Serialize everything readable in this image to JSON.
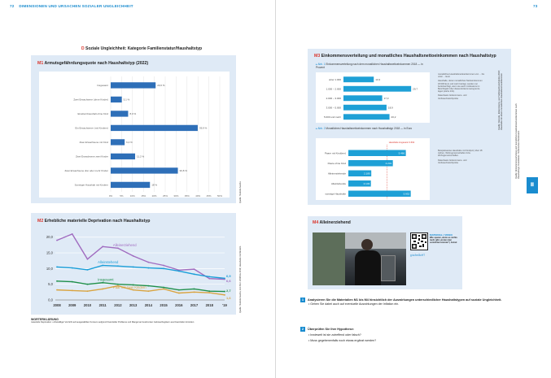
{
  "header": {
    "left_page_number": "72",
    "left_title": "DIMENSIONEN UND URSACHEN SOZIALER UNGLEICHHEIT",
    "right_page_number": "73"
  },
  "section_title": {
    "letter": "D",
    "text": "Soziale Ungleichheit: Kategorie Familienstatur/Haushaltstyp"
  },
  "m1": {
    "marker": "M1",
    "title": "Armutsgefährdungsquote nach Haushaltstyp (2022)",
    "source_vertical": "Quelle: Statistik Austria",
    "xaxis_label": "Armutsgefährdungsquote",
    "chart_data": {
      "type": "bar",
      "orientation": "horizontal",
      "title": "Armutsgefährdungsquote nach Haushaltstyp (2022)",
      "categories": [
        "Insgesamt",
        "Zwei Erwachsene (ohne Kinder)",
        "Einelternhaushalt ohne Kind",
        "Ein Erwachsener (mit Kindern)",
        "Zwei Erwachsene mit Kind",
        "Zwei Erwachsene zwei Kinder",
        "Zwei Erwachsene drei oder mehr Kinder",
        "Sonstiger Haushalt mit Kindern"
      ],
      "values": [
        20.6,
        5.1,
        8.0,
        39.9,
        6.4,
        11.2,
        30.8,
        18.0
      ],
      "value_labels": [
        "20,6 %",
        "5,1 %",
        "8,0 %",
        "39,9 %",
        "6,4 %",
        "11,2 %",
        "30,8 %",
        "18 %"
      ],
      "xticks": [
        "0%",
        "5%",
        "10%",
        "15%",
        "20%",
        "25%",
        "30%",
        "35%",
        "40%",
        "45%",
        "50%"
      ],
      "xlim": [
        0,
        50
      ]
    }
  },
  "m2": {
    "marker": "M2",
    "title": "Erhebliche materielle Deprivation nach Haushaltstyp",
    "source_vertical": "Quelle: Statistik Austria, EU-SILC 2008 bis 2019; Haushalte mit Kindern",
    "glossary_title": "WORTERKLÄRUNG",
    "glossary_text": "materielle Deprivation: unfreiwilliger Verzicht auf ausgewählten Konsum aufgrund finanzieller Probleme und Mangel an bestimmten Gebrauchsgütern aus finanziellen Gründen",
    "chart_data": {
      "type": "line",
      "title": "Erhebliche materielle Deprivation nach Haushaltstyp",
      "x": [
        "2008",
        "2009",
        "2010",
        "2011",
        "2012",
        "2013",
        "2014",
        "2015",
        "2016",
        "2017",
        "2018",
        "'19"
      ],
      "ylim": [
        0,
        22
      ],
      "yticks": [
        "0,0",
        "5,0",
        "10,0",
        "15,0",
        "20,0"
      ],
      "series": [
        {
          "name": "Alleinerziehend",
          "color": "#a06cc0",
          "values": [
            19.0,
            21.0,
            13.0,
            17.0,
            16.5,
            14.0,
            12.0,
            11.0,
            9.5,
            9.8,
            6.8,
            6.6
          ]
        },
        {
          "name": "Alleinstehend",
          "color": "#1a9ed8",
          "values": [
            10.5,
            10.2,
            9.6,
            11.0,
            10.8,
            10.5,
            10.2,
            10.0,
            9.2,
            8.2,
            7.4,
            6.9
          ]
        },
        {
          "name": "Insgesamt",
          "color": "#1f8f4a",
          "values": [
            6.0,
            5.8,
            5.0,
            5.5,
            5.0,
            4.8,
            4.5,
            4.0,
            3.2,
            3.5,
            2.8,
            2.7
          ]
        },
        {
          "name": "Paar mit zwei Kindern",
          "color": "#d9a441",
          "values": [
            3.2,
            3.0,
            2.8,
            3.5,
            4.5,
            3.2,
            2.8,
            3.5,
            2.2,
            2.5,
            2.3,
            1.6
          ]
        }
      ],
      "end_labels": [
        "6,6",
        "6,9",
        "2,7",
        "1,6"
      ]
    }
  },
  "m3": {
    "marker": "M3",
    "title": "Einkommensverteilung und monatliches Haushaltsnettoeinkommen nach Haushaltstyp",
    "sub1_label": "Abb. 1",
    "sub1_title": "Einkommensverteilung nach dem monatlichen Haushaltsnettoeinkommen 2018 — in Prozent",
    "chart1": {
      "type": "bar",
      "orientation": "horizontal",
      "categories": [
        "unter 1.000",
        "1.000 – 2.000",
        "2.000 – 3.000",
        "3.000 – 5.000",
        "5.000 und mehr"
      ],
      "values": [
        13.3,
        29.7,
        17.0,
        18.9,
        20.2
      ],
      "value_labels": [
        "13,3",
        "29,7",
        "17,0",
        "18,9",
        "20,2"
      ],
      "xlim": [
        0,
        35
      ]
    },
    "sub2_label": "Abb. 2",
    "sub2_title": "Monatliches Haushaltsnettoeinkommen nach Haushaltstyp 2018 — in Euro",
    "chart2_note": "Haushalte insgesamt 3.692",
    "chart2": {
      "type": "bar",
      "orientation": "horizontal",
      "categories": [
        "Paare mit Kind(ern)",
        "Paare ohne Kind",
        "Alleinerziehende",
        "Alleinlebende",
        "sonstige Haushalte"
      ],
      "values": [
        5466,
        4231,
        2180,
        2143,
        5932
      ],
      "value_labels": [
        "5.466",
        "4.231",
        "2.180",
        "2.143",
        "5.932"
      ],
      "xlim": [
        0,
        6500
      ]
    },
    "side_note1": "monatliches Haushaltsnettoeinkommen von ... bis unter ... Euro",
    "side_note2": "Haushalte, deren monatliches Nettoeinkommen 18.000 Euro und mehr beträgt, wurden nur berücksichtigt, wenn sie auch mindestens im Berichtsjahr über dieses Einkommensgrenze lagen (siehe Info).",
    "side_note3": "Datenbasis: Einkommens- und Verbrauchsstichprobe",
    "side_note4": "Beispielsweise Haushalte mit Kind(ern) über 18 Jahren, Wohngemeinschaften bzw. Wohngemeinschaften.",
    "side_note5": "Datenbasis: Einkommens- und Verbrauchsstichprobe",
    "source_vertical": "Quelle: Destatis, Einkommens- und Verbrauchsstichprobe 2018; Haushalte mit einem monatlichen Haushaltsnettoeinkommen"
  },
  "m4": {
    "marker": "M4",
    "title": "Alleinerziehend",
    "material_label": "MATERIAL | VIDEO",
    "material_text": "Wie sparen, wenn es nichts mehr gibt, woran man verzichten könnte? | Armut",
    "link": "g.tu/bel3cHT",
    "photo_alt": "photo"
  },
  "tasks": [
    {
      "num": "1",
      "text": "Analysieren Sie die Materialien M1 bis M4 hinsichtlich der Auswirkungen unterschiedlicher Haushaltstypen auf soziale Ungleichheit.",
      "bullets": [
        "Gehen Sie dabei auch auf eventuelle Auswirkungen der Inflation ein."
      ]
    },
    {
      "num": "2",
      "text": "Überprüfen Sie Ihre Hypothese:",
      "bullets": [
        "Inwieweit ist sie zutreffend oder falsch?",
        "Muss gegebenenfalls noch etwas ergänzt werden?"
      ]
    }
  ],
  "right_edge_text": "Quelle: Einkommensverteilung und monatliches Haushaltsnettoeinkommen nach Haushaltstyp; Datenbasis: Statistisches Bundesamt",
  "tab_marker": "Ⅲ",
  "colors": {
    "accent": "#1a8ccf",
    "bar": "#2e6fb8",
    "bar_light": "#1ea0d6",
    "box_bg": "#dfeaf6",
    "marker_red": "#d9342b"
  }
}
